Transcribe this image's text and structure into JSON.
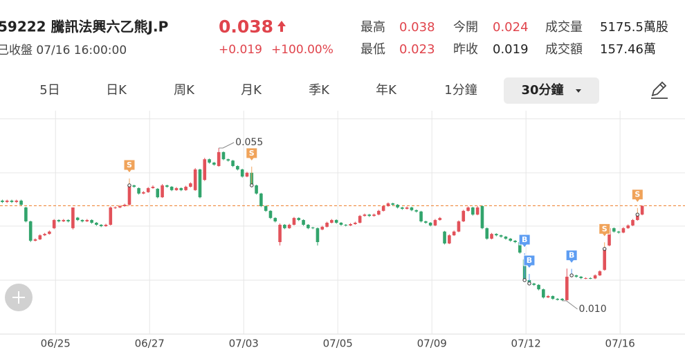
{
  "header": {
    "title": "59222 騰訊法興六乙熊J.P",
    "status": "已收盤 07/16 16:00:00",
    "price": "0.038",
    "change": "+0.019",
    "change_pct": "+100.00%",
    "stats": [
      [
        {
          "label": "最高",
          "value": "0.038"
        },
        {
          "label": "今開",
          "value": "0.024"
        },
        {
          "label": "成交量",
          "value": "5175.5萬股"
        }
      ],
      [
        {
          "label": "最低",
          "value": "0.023"
        },
        {
          "label": "昨收",
          "value": "0.019"
        },
        {
          "label": "成交額",
          "value": "157.46萬"
        }
      ]
    ]
  },
  "tabs": {
    "items": [
      "5日",
      "日K",
      "周K",
      "月K",
      "季K",
      "年K",
      "1分鐘",
      "30分鐘"
    ],
    "selected": 7
  },
  "chart_data": {
    "type": "candlestick",
    "up_color": "#e2525a",
    "down_color": "#32a46c",
    "xlim": [
      0,
      145.6
    ],
    "ylim": [
      0,
      0.066
    ],
    "ygrid": [
      0.0636,
      0.0477,
      0.032,
      0.0161
    ],
    "xticks": [
      {
        "value": 11.8,
        "label": "06/25"
      },
      {
        "value": 31.8,
        "label": "06/27"
      },
      {
        "value": 51.8,
        "label": "07/03"
      },
      {
        "value": 71.8,
        "label": "07/05"
      },
      {
        "value": 91.8,
        "label": "07/09"
      },
      {
        "value": 111.8,
        "label": "07/12"
      },
      {
        "value": 131.8,
        "label": "07/16"
      }
    ],
    "ref_line": 0.038,
    "ref_color": "#f0883c",
    "candles": [
      [
        0.0395,
        0.0398,
        0.0388,
        0.0391
      ],
      [
        0.0391,
        0.0398,
        0.0388,
        0.0395
      ],
      [
        0.0395,
        0.0398,
        0.0388,
        0.0391
      ],
      [
        0.0391,
        0.0398,
        0.0388,
        0.0395
      ],
      [
        0.0395,
        0.0398,
        0.038,
        0.0383
      ],
      [
        0.0375,
        0.0377,
        0.0331,
        0.0334
      ],
      [
        0.0334,
        0.0336,
        0.0273,
        0.0277
      ],
      [
        0.0277,
        0.0284,
        0.0275,
        0.0281
      ],
      [
        0.0281,
        0.0296,
        0.0279,
        0.0293
      ],
      [
        0.0293,
        0.03,
        0.0291,
        0.0297
      ],
      [
        0.0297,
        0.0307,
        0.0295,
        0.0304
      ],
      [
        0.0314,
        0.0341,
        0.0311,
        0.0338
      ],
      [
        0.0338,
        0.034,
        0.0331,
        0.0334
      ],
      [
        0.0334,
        0.0341,
        0.0332,
        0.0338
      ],
      [
        0.0338,
        0.034,
        0.0331,
        0.0334
      ],
      [
        0.0314,
        0.0375,
        0.031,
        0.0375
      ],
      [
        0.0345,
        0.0347,
        0.0335,
        0.0338
      ],
      [
        0.0338,
        0.034,
        0.0331,
        0.0334
      ],
      [
        0.0334,
        0.0341,
        0.0332,
        0.0338
      ],
      [
        0.0338,
        0.034,
        0.0327,
        0.033
      ],
      [
        0.033,
        0.0332,
        0.0321,
        0.0324
      ],
      [
        0.0324,
        0.0326,
        0.0317,
        0.032
      ],
      [
        0.032,
        0.0327,
        0.0318,
        0.0324
      ],
      [
        0.0324,
        0.0378,
        0.0322,
        0.0375
      ],
      [
        0.0373,
        0.0378,
        0.0371,
        0.0375
      ],
      [
        0.0375,
        0.0382,
        0.0373,
        0.0379
      ],
      [
        0.0379,
        0.0386,
        0.0377,
        0.0383
      ],
      [
        0.0383,
        0.0444,
        0.038,
        0.044
      ],
      [
        0.044,
        0.0442,
        0.0433,
        0.0436
      ],
      [
        0.0432,
        0.0434,
        0.0413,
        0.0416
      ],
      [
        0.0416,
        0.0423,
        0.0414,
        0.042
      ],
      [
        0.042,
        0.0435,
        0.0418,
        0.0432
      ],
      [
        0.0432,
        0.044,
        0.043,
        0.0436
      ],
      [
        0.043,
        0.0432,
        0.0402,
        0.0405
      ],
      [
        0.0405,
        0.0444,
        0.0403,
        0.044
      ],
      [
        0.044,
        0.0442,
        0.0433,
        0.0436
      ],
      [
        0.0436,
        0.0438,
        0.0423,
        0.0426
      ],
      [
        0.0426,
        0.0435,
        0.0424,
        0.0432
      ],
      [
        0.0432,
        0.0434,
        0.0423,
        0.0426
      ],
      [
        0.0426,
        0.0439,
        0.0424,
        0.0436
      ],
      [
        0.0436,
        0.0449,
        0.0434,
        0.0446
      ],
      [
        0.0426,
        0.0491,
        0.0424,
        0.0487
      ],
      [
        0.0487,
        0.0489,
        0.0402,
        0.0405
      ],
      [
        0.0456,
        0.0521,
        0.0453,
        0.0517
      ],
      [
        0.0517,
        0.0519,
        0.0504,
        0.0507
      ],
      [
        0.0507,
        0.0509,
        0.0498,
        0.0501
      ],
      [
        0.0497,
        0.055,
        0.0495,
        0.0538
      ],
      [
        0.0538,
        0.054,
        0.0514,
        0.0517
      ],
      [
        0.0517,
        0.0519,
        0.051,
        0.0513
      ],
      [
        0.0513,
        0.0515,
        0.0494,
        0.0497
      ],
      [
        0.0497,
        0.0499,
        0.0484,
        0.0487
      ],
      [
        0.0487,
        0.0489,
        0.0463,
        0.0466
      ],
      [
        0.0466,
        0.048,
        0.0464,
        0.0477
      ],
      [
        0.0477,
        0.0479,
        0.0437,
        0.044
      ],
      [
        0.044,
        0.0442,
        0.0413,
        0.0416
      ],
      [
        0.0416,
        0.0418,
        0.0376,
        0.0379
      ],
      [
        0.0379,
        0.0381,
        0.0362,
        0.0365
      ],
      [
        0.0365,
        0.0367,
        0.0341,
        0.0344
      ],
      [
        0.0344,
        0.0346,
        0.0331,
        0.0334
      ],
      [
        0.0273,
        0.0328,
        0.0263,
        0.0324
      ],
      [
        0.0324,
        0.0326,
        0.0311,
        0.0314
      ],
      [
        0.0314,
        0.0327,
        0.0312,
        0.0324
      ],
      [
        0.0324,
        0.0347,
        0.0322,
        0.0344
      ],
      [
        0.0344,
        0.0346,
        0.0335,
        0.0338
      ],
      [
        0.0338,
        0.034,
        0.0321,
        0.0324
      ],
      [
        0.0324,
        0.0326,
        0.0311,
        0.0314
      ],
      [
        0.0316,
        0.0318,
        0.0311,
        0.0314
      ],
      [
        0.0314,
        0.0316,
        0.0263,
        0.0273
      ],
      [
        0.031,
        0.0321,
        0.0308,
        0.0318
      ],
      [
        0.0318,
        0.0333,
        0.0316,
        0.033
      ],
      [
        0.033,
        0.0341,
        0.0328,
        0.0338
      ],
      [
        0.0338,
        0.034,
        0.0327,
        0.033
      ],
      [
        0.033,
        0.0332,
        0.0321,
        0.0324
      ],
      [
        0.0324,
        0.0326,
        0.0319,
        0.0322
      ],
      [
        0.0322,
        0.0329,
        0.032,
        0.0326
      ],
      [
        0.0326,
        0.0333,
        0.0324,
        0.033
      ],
      [
        0.033,
        0.0353,
        0.0328,
        0.035
      ],
      [
        0.035,
        0.0357,
        0.0348,
        0.0354
      ],
      [
        0.0354,
        0.0356,
        0.0347,
        0.035
      ],
      [
        0.035,
        0.0357,
        0.0348,
        0.0354
      ],
      [
        0.0354,
        0.0368,
        0.0352,
        0.0365
      ],
      [
        0.0365,
        0.0382,
        0.0363,
        0.0379
      ],
      [
        0.0379,
        0.039,
        0.0377,
        0.0387
      ],
      [
        0.0387,
        0.0389,
        0.038,
        0.0383
      ],
      [
        0.0383,
        0.0385,
        0.0372,
        0.0375
      ],
      [
        0.0375,
        0.0377,
        0.0368,
        0.0371
      ],
      [
        0.0371,
        0.0378,
        0.0369,
        0.0375
      ],
      [
        0.0375,
        0.0377,
        0.0364,
        0.0367
      ],
      [
        0.0367,
        0.0369,
        0.036,
        0.0363
      ],
      [
        0.0363,
        0.0365,
        0.0331,
        0.0334
      ],
      [
        0.0334,
        0.0336,
        0.0327,
        0.033
      ],
      [
        0.033,
        0.0332,
        0.0319,
        0.0322
      ],
      [
        0.0322,
        0.0341,
        0.032,
        0.0338
      ],
      [
        0.0338,
        0.0347,
        0.0336,
        0.0344
      ],
      [
        0.0304,
        0.0306,
        0.0266,
        0.0269
      ],
      [
        0.0269,
        0.0296,
        0.0267,
        0.0293
      ],
      [
        0.0293,
        0.0307,
        0.0291,
        0.0304
      ],
      [
        0.0304,
        0.0337,
        0.0302,
        0.0334
      ],
      [
        0.0334,
        0.0368,
        0.0332,
        0.0365
      ],
      [
        0.0365,
        0.0378,
        0.0363,
        0.0375
      ],
      [
        0.0375,
        0.0377,
        0.0351,
        0.0354
      ],
      [
        0.0354,
        0.0379,
        0.0352,
        0.0375
      ],
      [
        0.0379,
        0.0381,
        0.0311,
        0.0314
      ],
      [
        0.0314,
        0.0316,
        0.028,
        0.0283
      ],
      [
        0.0283,
        0.03,
        0.0281,
        0.0297
      ],
      [
        0.0297,
        0.0299,
        0.029,
        0.0293
      ],
      [
        0.0293,
        0.0295,
        0.0286,
        0.0289
      ],
      [
        0.0289,
        0.0291,
        0.028,
        0.0283
      ],
      [
        0.0283,
        0.0285,
        0.0274,
        0.0277
      ],
      [
        0.0277,
        0.0279,
        0.027,
        0.0273
      ],
      [
        0.0273,
        0.0275,
        0.0239,
        0.0242
      ],
      [
        0.0222,
        0.0224,
        0.0158,
        0.0161
      ],
      [
        0.0161,
        0.0163,
        0.0148,
        0.0151
      ],
      [
        0.0151,
        0.0153,
        0.0144,
        0.0147
      ],
      [
        0.0147,
        0.0149,
        0.0131,
        0.0134
      ],
      [
        0.0134,
        0.0136,
        0.0107,
        0.011
      ],
      [
        0.011,
        0.0117,
        0.0108,
        0.0114
      ],
      [
        0.0114,
        0.0116,
        0.0103,
        0.0106
      ],
      [
        0.0106,
        0.0108,
        0.0101,
        0.0103
      ],
      [
        0.0106,
        0.0108,
        0.01,
        0.0102
      ],
      [
        0.0102,
        0.0195,
        0.0101,
        0.0171
      ],
      [
        0.0171,
        0.0178,
        0.0169,
        0.0175
      ],
      [
        0.0175,
        0.0177,
        0.0168,
        0.0171
      ],
      [
        0.0171,
        0.0173,
        0.0164,
        0.0167
      ],
      [
        0.0166,
        0.0169,
        0.0164,
        0.0167
      ],
      [
        0.0167,
        0.0169,
        0.0164,
        0.0166
      ],
      [
        0.0166,
        0.0178,
        0.0164,
        0.0175
      ],
      [
        0.0175,
        0.019,
        0.0173,
        0.0187
      ],
      [
        0.0191,
        0.0256,
        0.0189,
        0.0253
      ],
      [
        0.0263,
        0.0317,
        0.0261,
        0.0314
      ],
      [
        0.0314,
        0.0316,
        0.0301,
        0.0304
      ],
      [
        0.0304,
        0.0306,
        0.0298,
        0.0301
      ],
      [
        0.0301,
        0.0317,
        0.0299,
        0.0314
      ],
      [
        0.0314,
        0.0325,
        0.0312,
        0.0322
      ],
      [
        0.0322,
        0.0341,
        0.032,
        0.0338
      ],
      [
        0.0338,
        0.0357,
        0.0336,
        0.0354
      ],
      [
        0.0354,
        0.038,
        0.0352,
        0.038
      ]
    ],
    "markers": [
      {
        "x": 27,
        "label": "S"
      },
      {
        "x": 53,
        "label": "S"
      },
      {
        "x": 111,
        "label": "B"
      },
      {
        "x": 112,
        "label": "B"
      },
      {
        "x": 121,
        "label": "B"
      },
      {
        "x": 128,
        "label": "S"
      },
      {
        "x": 135,
        "label": "S"
      }
    ],
    "annotations": [
      {
        "x": 46,
        "value": 0.055
      },
      {
        "x": 119,
        "value": 0.01,
        "label": "0.010"
      }
    ]
  }
}
